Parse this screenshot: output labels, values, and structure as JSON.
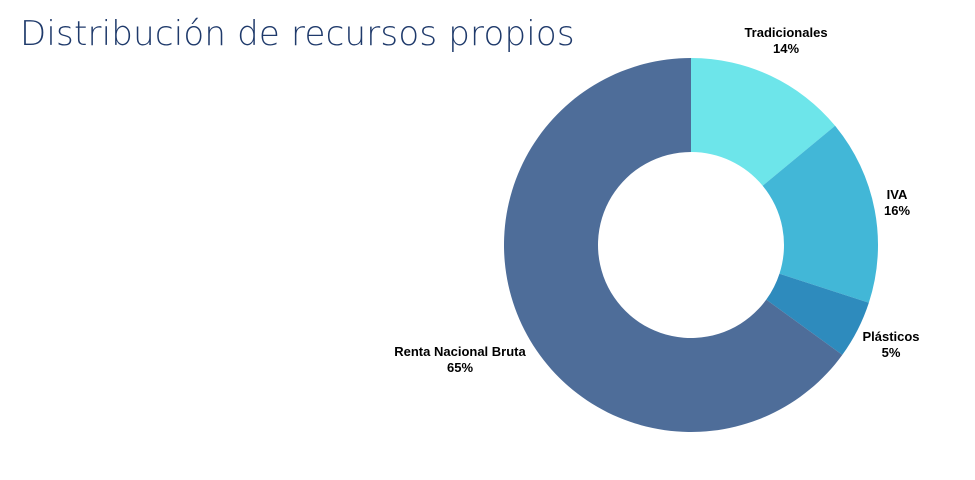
{
  "page": {
    "title": "Distribución de recursos propios"
  },
  "chart_data": {
    "type": "pie",
    "donut": true,
    "start_angle_deg": 0,
    "direction": "clockwise",
    "slices": [
      {
        "name": "Tradicionales",
        "value": 14,
        "label": "14%",
        "color": "#6de5ea"
      },
      {
        "name": "IVA",
        "value": 16,
        "label": "16%",
        "color": "#42b7d7"
      },
      {
        "name": "Plásticos",
        "value": 5,
        "label": "5%",
        "color": "#2e8bbd"
      },
      {
        "name": "Renta Nacional Bruta",
        "value": 65,
        "label": "65%",
        "color": "#4e6d99"
      }
    ],
    "legend": "none",
    "data_labels": "outside"
  }
}
